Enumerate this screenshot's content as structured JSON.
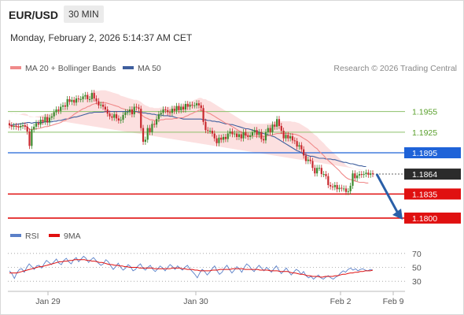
{
  "header": {
    "pair": "EUR/USD",
    "timeframe": "30 MIN",
    "datetime": "Monday, February 2, 2026 5:14:37 AM CET"
  },
  "legend": {
    "ma20_label": "MA 20 + Bollinger Bands",
    "ma50_label": "MA 50",
    "copyright": "Research © 2026 Trading Central"
  },
  "rsi_legend": {
    "rsi_label": "RSI",
    "ma_label": "9MA"
  },
  "colors": {
    "ma20": "#f08a8a",
    "band_fill": "#fbdada",
    "ma50": "#3f5f9e",
    "resistance": "#8cc16a",
    "pivot": "#1f63d8",
    "support": "#e01010",
    "arrow": "#2a5fa8",
    "bull": "#3c8a2e",
    "bear": "#c8282d",
    "rsi": "#5b80c8",
    "rsi_ma": "#e01010"
  },
  "chart_data": [
    {
      "type": "candlestick",
      "title": "EUR/USD 30 MIN",
      "x_tick_labels": [
        "Jan 29",
        "Jan 30",
        "Feb 2",
        "Feb 9"
      ],
      "ylim": [
        1.1785,
        1.2005
      ],
      "levels": [
        {
          "label": "1.1955",
          "value": 1.1955,
          "kind": "resistance"
        },
        {
          "label": "1.1925",
          "value": 1.1925,
          "kind": "resistance"
        },
        {
          "label": "1.1895",
          "value": 1.1895,
          "kind": "pivot"
        },
        {
          "label": "1.1864",
          "value": 1.1864,
          "kind": "last"
        },
        {
          "label": "1.1835",
          "value": 1.1835,
          "kind": "support"
        },
        {
          "label": "1.1800",
          "value": 1.18,
          "kind": "support"
        }
      ],
      "forecast_arrow": {
        "from": 1.1864,
        "to": 1.18
      },
      "close": [
        1.1935,
        1.1933,
        1.1934,
        1.1933,
        1.1932,
        1.1934,
        1.1935,
        1.1933,
        1.1926,
        1.1905,
        1.1929,
        1.1933,
        1.1938,
        1.1936,
        1.1943,
        1.194,
        1.1947,
        1.1939,
        1.1946,
        1.1948,
        1.1954,
        1.1958,
        1.1956,
        1.1962,
        1.1964,
        1.1962,
        1.1973,
        1.1969,
        1.1972,
        1.1968,
        1.1974,
        1.1973,
        1.1973,
        1.1977,
        1.1979,
        1.1973,
        1.1973,
        1.1982,
        1.1974,
        1.197,
        1.1964,
        1.1965,
        1.1962,
        1.1958,
        1.1952,
        1.1948,
        1.1946,
        1.1951,
        1.1945,
        1.1942,
        1.1943,
        1.195,
        1.1954,
        1.1954,
        1.1958,
        1.1951,
        1.1962,
        1.1961,
        1.1959,
        1.1931,
        1.1911,
        1.1914,
        1.1931,
        1.1925,
        1.1937,
        1.1936,
        1.1944,
        1.1951,
        1.1953,
        1.1958,
        1.1957,
        1.1954,
        1.1953,
        1.1959,
        1.1956,
        1.1963,
        1.1957,
        1.1962,
        1.1958,
        1.1966,
        1.1962,
        1.1965,
        1.1964,
        1.1964,
        1.1967,
        1.1964,
        1.196,
        1.194,
        1.1928,
        1.1927,
        1.1927,
        1.1923,
        1.1916,
        1.1909,
        1.1917,
        1.1914,
        1.1918,
        1.1915,
        1.1923,
        1.1926,
        1.1922,
        1.1923,
        1.1918,
        1.1922,
        1.1916,
        1.1925,
        1.192,
        1.1918,
        1.192,
        1.1925,
        1.1928,
        1.1921,
        1.1925,
        1.1915,
        1.1913,
        1.1925,
        1.1931,
        1.1925,
        1.1936,
        1.1933,
        1.1944,
        1.1934,
        1.1927,
        1.1916,
        1.1921,
        1.1916,
        1.1919,
        1.1913,
        1.1912,
        1.1904,
        1.1906,
        1.19,
        1.1891,
        1.1883,
        1.1885,
        1.1883,
        1.1873,
        1.1865,
        1.1873,
        1.1873,
        1.1864,
        1.1864,
        1.1861,
        1.1848,
        1.1846,
        1.1845,
        1.1848,
        1.1842,
        1.1844,
        1.1843,
        1.1843,
        1.1838,
        1.1839,
        1.1847,
        1.1865,
        1.1858,
        1.1862,
        1.1864,
        1.1863,
        1.1864,
        1.1866,
        1.1863,
        1.1865,
        1.1864
      ],
      "ma20": [
        1.1935,
        1.1934,
        1.1934,
        1.1934,
        1.1933,
        1.1933,
        1.1934,
        1.1934,
        1.1933,
        1.1929,
        1.1929,
        1.1929,
        1.193,
        1.193,
        1.1931,
        1.1932,
        1.1933,
        1.1933,
        1.1934,
        1.1935,
        1.1936,
        1.1937,
        1.1938,
        1.1939,
        1.1941,
        1.1942,
        1.1944,
        1.1946,
        1.1948,
        1.1951,
        1.1953,
        1.1955,
        1.1957,
        1.1959,
        1.196,
        1.1962,
        1.1963,
        1.1965,
        1.1966,
        1.1967,
        1.1967,
        1.1968,
        1.1968,
        1.1968,
        1.1967,
        1.1966,
        1.1965,
        1.1964,
        1.1963,
        1.1962,
        1.196,
        1.1959,
        1.1958,
        1.1957,
        1.1956,
        1.1955,
        1.1954,
        1.1954,
        1.1953,
        1.1951,
        1.1948,
        1.1946,
        1.1945,
        1.1943,
        1.1943,
        1.1942,
        1.1942,
        1.1942,
        1.1943,
        1.1943,
        1.1944,
        1.1944,
        1.1944,
        1.1944,
        1.1945,
        1.1945,
        1.1946,
        1.1946,
        1.1946,
        1.1948,
        1.1949,
        1.1951,
        1.1952,
        1.1954,
        1.1955,
        1.1957,
        1.1957,
        1.1955,
        1.1955,
        1.1953,
        1.1952,
        1.195,
        1.1948,
        1.1946,
        1.1944,
        1.1942,
        1.194,
        1.1938,
        1.1937,
        1.1935,
        1.1933,
        1.1931,
        1.1929,
        1.1927,
        1.1925,
        1.1923,
        1.1921,
        1.192,
        1.192,
        1.1919,
        1.1919,
        1.1919,
        1.1919,
        1.1919,
        1.1919,
        1.1919,
        1.192,
        1.192,
        1.1921,
        1.1922,
        1.1923,
        1.1923,
        1.1923,
        1.1923,
        1.1923,
        1.1923,
        1.1923,
        1.1922,
        1.1922,
        1.1921,
        1.192,
        1.1918,
        1.1916,
        1.1914,
        1.1912,
        1.1909,
        1.1906,
        1.1903,
        1.1901,
        1.1897,
        1.1894,
        1.1891,
        1.1887,
        1.1884,
        1.1881,
        1.1878,
        1.1875,
        1.1872,
        1.1869,
        1.1865,
        1.1862,
        1.1859,
        1.1857,
        1.1856,
        1.1855,
        1.1854,
        1.1853,
        1.1852,
        1.1852,
        1.1852,
        1.1851,
        1.1851
      ],
      "ma50": [
        1.1935,
        1.1935,
        1.1936,
        1.1936,
        1.1937,
        1.1937,
        1.1938,
        1.1938,
        1.1939,
        1.1939,
        1.1938,
        1.1939,
        1.1939,
        1.1939,
        1.1939,
        1.1939,
        1.194,
        1.194,
        1.194,
        1.194,
        1.1941,
        1.1941,
        1.1942,
        1.1942,
        1.1943,
        1.1944,
        1.1944,
        1.1945,
        1.1946,
        1.1947,
        1.1947,
        1.1948,
        1.1949,
        1.195,
        1.1951,
        1.1952,
        1.1953,
        1.1953,
        1.1954,
        1.1954,
        1.1954,
        1.1954,
        1.1954,
        1.1955,
        1.1955,
        1.1955,
        1.1955,
        1.1955,
        1.1955,
        1.1955,
        1.1955,
        1.1955,
        1.1955,
        1.1955,
        1.1955,
        1.1955,
        1.1955,
        1.1955,
        1.1954,
        1.1954,
        1.1953,
        1.1953,
        1.1952,
        1.1952,
        1.1951,
        1.1951,
        1.195,
        1.195,
        1.195,
        1.1949,
        1.1949,
        1.1949,
        1.1948,
        1.1948,
        1.1947,
        1.1946,
        1.1946,
        1.1945,
        1.1944,
        1.1944,
        1.1944,
        1.1944,
        1.1944,
        1.1944,
        1.1944,
        1.1944,
        1.1944,
        1.1943,
        1.1943,
        1.1942,
        1.1942,
        1.1941,
        1.1941,
        1.194,
        1.194,
        1.1939,
        1.1938,
        1.1937,
        1.1937,
        1.1936,
        1.1936,
        1.1935,
        1.1934,
        1.1933,
        1.1932,
        1.1931,
        1.193,
        1.193,
        1.1929,
        1.1928,
        1.1927,
        1.1926,
        1.1925,
        1.1924,
        1.1923,
        1.1922,
        1.1921,
        1.192,
        1.1919,
        1.1918,
        1.1916,
        1.1914,
        1.1912,
        1.191,
        1.1908,
        1.1906,
        1.1904,
        1.1902,
        1.19,
        1.1898,
        1.1897,
        1.1895,
        1.1893,
        1.1892,
        1.1891,
        1.189,
        1.189,
        1.1889,
        1.1888,
        1.1887,
        1.1887,
        1.1887,
        1.1886,
        1.1886,
        1.1886,
        1.1885,
        1.1885,
        1.1884,
        1.1883,
        1.1882,
        1.1881,
        1.1881,
        1.188,
        1.1879,
        1.1879,
        1.1878,
        1.1877,
        1.1876,
        1.1876,
        1.1875,
        1.1875
      ],
      "band_half_width": 0.0018
    },
    {
      "type": "line",
      "title": "RSI",
      "ylim": [
        20,
        80
      ],
      "y_ticks": [
        30,
        50,
        70
      ],
      "series": [
        {
          "name": "RSI",
          "values": [
            45,
            41,
            34,
            42,
            47,
            48,
            43,
            50,
            55,
            51,
            47,
            52,
            53,
            49,
            55,
            60,
            57,
            54,
            58,
            62,
            56,
            54,
            60,
            63,
            58,
            55,
            61,
            64,
            58,
            62,
            66,
            63,
            57,
            61,
            64,
            60,
            56,
            53,
            55,
            61,
            58,
            52,
            47,
            51,
            56,
            50,
            46,
            49,
            54,
            51,
            45,
            47,
            52,
            55,
            49,
            46,
            50,
            53,
            47,
            44,
            48,
            52,
            49,
            45,
            50,
            54,
            51,
            47,
            52,
            49,
            46,
            50,
            53,
            48,
            44,
            40,
            35,
            42,
            47,
            44,
            39,
            43,
            48,
            52,
            45,
            40,
            43,
            49,
            53,
            47,
            42,
            46,
            51,
            48,
            43,
            50,
            55,
            52,
            47,
            44,
            49,
            53,
            49,
            45,
            50,
            47,
            43,
            48,
            52,
            46,
            41,
            45,
            49,
            44,
            39,
            43,
            47,
            45,
            40,
            44,
            38,
            35,
            37,
            33,
            36,
            39,
            35,
            33,
            36,
            38,
            35,
            33,
            36,
            38,
            42,
            45,
            43,
            47,
            49,
            46,
            48,
            45,
            47,
            48,
            46,
            45,
            47,
            46
          ]
        },
        {
          "name": "9MA",
          "values": [
            42,
            42,
            42,
            42,
            43,
            44,
            45,
            46,
            47,
            48,
            49,
            50,
            51,
            51,
            52,
            53,
            54,
            55,
            56,
            57,
            58,
            58,
            59,
            59,
            60,
            60,
            61,
            61,
            61,
            61,
            61,
            60,
            60,
            59,
            59,
            58,
            57,
            57,
            56,
            55,
            54,
            54,
            53,
            53,
            52,
            52,
            51,
            51,
            50,
            50,
            50,
            50,
            49,
            49,
            49,
            49,
            49,
            49,
            48,
            48,
            48,
            48,
            48,
            48,
            48,
            49,
            49,
            49,
            49,
            48,
            48,
            47,
            47,
            47,
            46,
            46,
            45,
            45,
            45,
            45,
            45,
            46,
            46,
            46,
            47,
            47,
            47,
            47,
            47,
            48,
            48,
            48,
            48,
            48,
            47,
            47,
            47,
            47,
            47,
            47,
            46,
            46,
            46,
            46,
            45,
            45,
            45,
            45,
            44,
            44,
            44,
            44,
            43,
            42,
            42,
            41,
            40,
            40,
            39,
            38,
            38,
            37,
            37,
            37,
            36,
            36,
            37,
            37,
            37,
            37,
            38,
            38,
            39,
            40,
            40,
            41,
            42,
            42,
            43,
            43,
            44,
            44,
            45,
            45,
            45,
            46
          ]
        }
      ]
    }
  ]
}
